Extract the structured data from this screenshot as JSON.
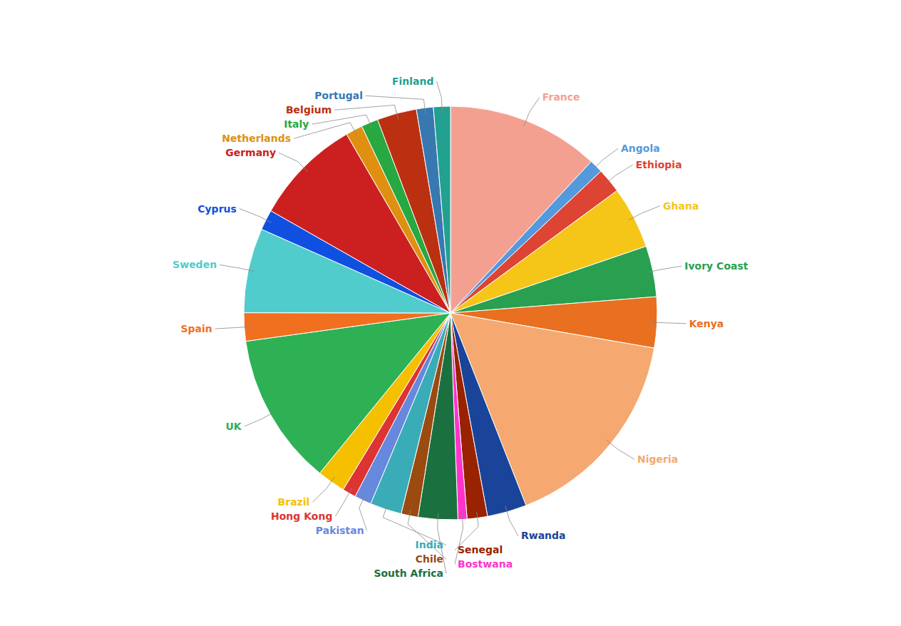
{
  "chart_data": {
    "type": "pie",
    "categories": [
      "France",
      "Angola",
      "Ethiopia",
      "Ghana",
      "Ivory Coast",
      "Kenya",
      "Nigeria",
      "Rwanda",
      "Senegal",
      "Bostwana",
      "South Africa",
      "Chile",
      "India",
      "Pakistan",
      "Hong Kong",
      "Brazil",
      "UK",
      "Spain",
      "Sweden",
      "Cyprus",
      "Germany",
      "Netherlands",
      "Italy",
      "Belgium",
      "Portugal",
      "Finland"
    ],
    "values": [
      13.5,
      1.2,
      2.2,
      5.5,
      4.5,
      4.5,
      18.5,
      3.5,
      1.8,
      0.8,
      3.5,
      1.5,
      2.8,
      1.5,
      1.2,
      2.5,
      13.5,
      2.5,
      7.5,
      1.8,
      9.5,
      1.5,
      1.5,
      3.5,
      1.5,
      1.5
    ],
    "colors": [
      "#F4A090",
      "#5599DD",
      "#DD4433",
      "#F5C518",
      "#28A050",
      "#E87020",
      "#F5A870",
      "#1A4499",
      "#992200",
      "#FF33CC",
      "#1B7040",
      "#9B4A10",
      "#3AACB8",
      "#6688DD",
      "#DD3333",
      "#F5C000",
      "#2EB055",
      "#F07020",
      "#50CCCC",
      "#1050E0",
      "#CC2020",
      "#E09010",
      "#28A840",
      "#BB3010",
      "#3878B0",
      "#22A090"
    ]
  }
}
